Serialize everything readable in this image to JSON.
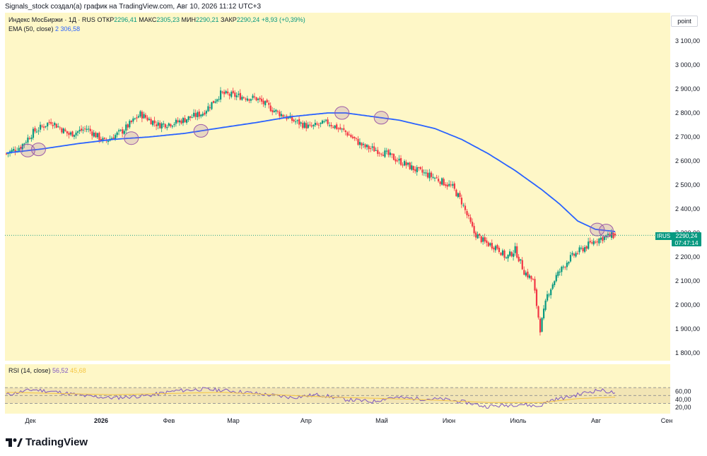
{
  "credit": "Signals_stock создал(а) график на TradingView.com, Авг 10, 2026 11:12 UTC+3",
  "legend": {
    "symbol": "Индекс МосБиржи · 1Д · RUS",
    "open_label": "ОТКР",
    "open": "2296,41",
    "high_label": "МАКС",
    "high": "2305,23",
    "low_label": "МИН",
    "low": "2290,21",
    "close_label": "ЗАКР",
    "close": "2290,24",
    "change": "+8,93 (+0,39%)"
  },
  "ema_legend": {
    "label": "EMA (50, close)",
    "value": "2 306,58"
  },
  "rsi_legend": {
    "label": "RSI (14, close)",
    "value": "56,52",
    "ma_value": "45,68"
  },
  "scale_unit": "point",
  "price_tag": {
    "symbol": "IRUS",
    "price": "2290,24",
    "countdown": "07:47:14"
  },
  "brand": "TradingView",
  "colors": {
    "up": "#089981",
    "down": "#f23645",
    "ema": "#2962ff",
    "rsi": "#7e57c2",
    "rsi_ma": "#f5c542",
    "background": "#fef7c7"
  },
  "chart_data": [
    {
      "type": "candlestick",
      "interval": "1D",
      "price_axis": {
        "min": 1800,
        "max": 3100,
        "step": 100,
        "ticks": [
          "1 800,00",
          "1 900,00",
          "2 000,00",
          "2 100,00",
          "2 200,00",
          "2 300,00",
          "2 400,00",
          "2 500,00",
          "2 600,00",
          "2 700,00",
          "2 800,00",
          "2 900,00",
          "3 000,00",
          "3 100,00"
        ]
      },
      "time_axis": [
        "Дек",
        "2026",
        "Фев",
        "Мар",
        "Апр",
        "Май",
        "Июн",
        "Июль",
        "Авг",
        "Сен"
      ],
      "ema_50_path": [
        [
          0,
          2633
        ],
        [
          20,
          2650
        ],
        [
          40,
          2672
        ],
        [
          60,
          2690
        ],
        [
          80,
          2700
        ],
        [
          100,
          2715
        ],
        [
          120,
          2738
        ],
        [
          140,
          2760
        ],
        [
          160,
          2785
        ],
        [
          180,
          2800
        ],
        [
          190,
          2800
        ],
        [
          200,
          2790
        ],
        [
          220,
          2770
        ],
        [
          240,
          2735
        ],
        [
          255,
          2690
        ],
        [
          270,
          2630
        ],
        [
          285,
          2560
        ],
        [
          300,
          2480
        ],
        [
          310,
          2420
        ],
        [
          320,
          2350
        ],
        [
          330,
          2315
        ],
        [
          341,
          2306
        ]
      ],
      "close_path": [
        [
          0,
          2630
        ],
        [
          8,
          2660
        ],
        [
          15,
          2720
        ],
        [
          25,
          2765
        ],
        [
          35,
          2710
        ],
        [
          45,
          2735
        ],
        [
          55,
          2680
        ],
        [
          65,
          2725
        ],
        [
          75,
          2795
        ],
        [
          85,
          2750
        ],
        [
          95,
          2760
        ],
        [
          110,
          2800
        ],
        [
          120,
          2880
        ],
        [
          130,
          2870
        ],
        [
          140,
          2860
        ],
        [
          150,
          2810
        ],
        [
          160,
          2770
        ],
        [
          170,
          2740
        ],
        [
          180,
          2760
        ],
        [
          190,
          2720
        ],
        [
          200,
          2660
        ],
        [
          210,
          2640
        ],
        [
          220,
          2600
        ],
        [
          230,
          2560
        ],
        [
          240,
          2530
        ],
        [
          250,
          2490
        ],
        [
          255,
          2430
        ],
        [
          262,
          2300
        ],
        [
          268,
          2260
        ],
        [
          275,
          2240
        ],
        [
          280,
          2195
        ],
        [
          285,
          2230
        ],
        [
          290,
          2140
        ],
        [
          295,
          2100
        ],
        [
          299,
          1900
        ],
        [
          303,
          2040
        ],
        [
          308,
          2120
        ],
        [
          315,
          2190
        ],
        [
          320,
          2220
        ],
        [
          330,
          2270
        ],
        [
          336,
          2285
        ],
        [
          341,
          2290
        ]
      ],
      "final": {
        "open": 2296.41,
        "high": 2305.23,
        "low": 2290.21,
        "close": 2290.24,
        "ema": 2306.58
      }
    },
    {
      "type": "line",
      "name": "RSI (14, close)",
      "y_axis": {
        "ticks": [
          "20,00",
          "40,00",
          "60,00"
        ],
        "bands": [
          30,
          70
        ]
      },
      "rsi_path": [
        [
          0,
          52
        ],
        [
          15,
          65
        ],
        [
          30,
          58
        ],
        [
          45,
          48
        ],
        [
          60,
          44
        ],
        [
          80,
          50
        ],
        [
          95,
          62
        ],
        [
          110,
          66
        ],
        [
          125,
          62
        ],
        [
          140,
          55
        ],
        [
          160,
          45
        ],
        [
          175,
          52
        ],
        [
          190,
          40
        ],
        [
          205,
          34
        ],
        [
          215,
          45
        ],
        [
          230,
          42
        ],
        [
          245,
          40
        ],
        [
          258,
          32
        ],
        [
          268,
          22
        ],
        [
          278,
          24
        ],
        [
          288,
          28
        ],
        [
          298,
          22
        ],
        [
          305,
          38
        ],
        [
          315,
          46
        ],
        [
          325,
          58
        ],
        [
          332,
          64
        ],
        [
          341,
          56.5
        ]
      ],
      "ma_path": [
        [
          0,
          58
        ],
        [
          60,
          52
        ],
        [
          120,
          58
        ],
        [
          180,
          46
        ],
        [
          230,
          40
        ],
        [
          270,
          32
        ],
        [
          300,
          32
        ],
        [
          320,
          42
        ],
        [
          341,
          45.7
        ]
      ]
    }
  ]
}
